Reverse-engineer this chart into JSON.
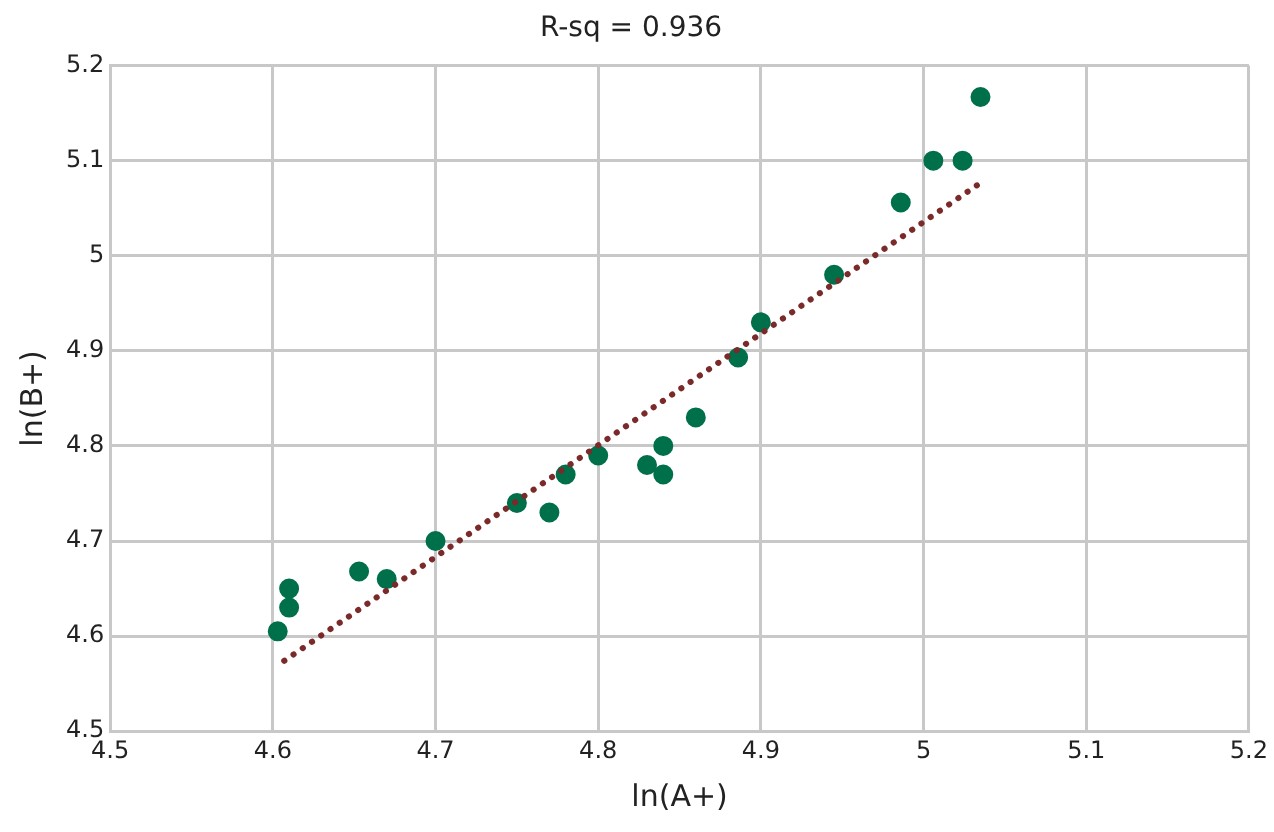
{
  "chart_data": {
    "type": "scatter",
    "title": "R-sq = 0.936",
    "xlabel": "ln(A+)",
    "ylabel": "ln(B+)",
    "xlim": [
      4.5,
      5.2
    ],
    "xticks": [
      4.5,
      4.6,
      4.7,
      4.8,
      4.9,
      5,
      5.1,
      5.2
    ],
    "ylim": [
      4.5,
      5.2
    ],
    "yticks": [
      4.5,
      4.6,
      4.7,
      4.8,
      4.9,
      5,
      5.1,
      5.2
    ],
    "grid": true,
    "legend": false,
    "series": [
      {
        "type": "scatter",
        "color": "#00704a",
        "marker": "circle",
        "x": [
          4.603,
          4.61,
          4.61,
          4.653,
          4.67,
          4.7,
          4.75,
          4.77,
          4.78,
          4.8,
          4.83,
          4.84,
          4.84,
          4.86,
          4.886,
          4.9,
          4.945,
          4.986,
          5.006,
          5.024,
          5.035
        ],
        "values": [
          4.605,
          4.63,
          4.65,
          4.668,
          4.66,
          4.7,
          4.74,
          4.73,
          4.77,
          4.79,
          4.78,
          4.8,
          4.77,
          4.83,
          4.893,
          4.93,
          4.98,
          5.056,
          5.1,
          5.1,
          5.167
        ]
      },
      {
        "type": "line",
        "color": "#7b2a2a",
        "marker": "none",
        "line_style": "dotted",
        "x": [
          4.607,
          5.037
        ],
        "values": [
          4.574,
          5.079
        ]
      }
    ]
  }
}
